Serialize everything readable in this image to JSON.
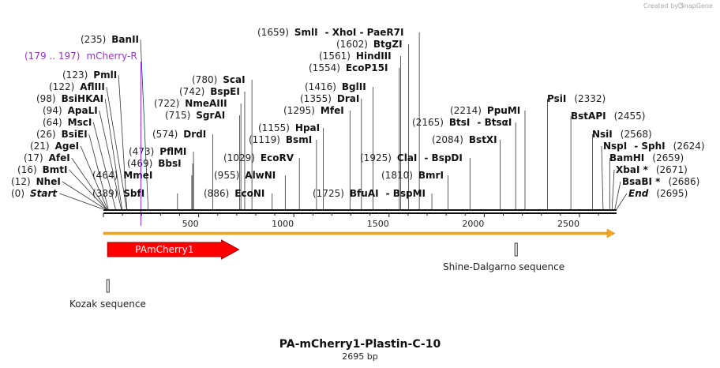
{
  "credit": "Created by SnapGene",
  "map": {
    "title": "PA-mCherry1-Plastin-C-10",
    "length_label": "2695 bp",
    "length_bp": 2695,
    "ticks": [
      "500",
      "1000",
      "1500",
      "2000",
      "2500"
    ],
    "tick_values": [
      500,
      1000,
      1500,
      2000,
      2500
    ]
  },
  "primer": {
    "range": "(179 .. 197)",
    "name": "mCherry-R",
    "bp": 197
  },
  "features": [
    {
      "name": "PAmCherry1",
      "type": "cds-arrow",
      "start": 1,
      "end": 711,
      "color": "#ff0000"
    },
    {
      "name": "Kozak sequence",
      "type": "small-box",
      "start": 1,
      "end": 10
    },
    {
      "name": "Shine-Dalgarno sequence",
      "type": "small-box",
      "start": 2161,
      "end": 2167
    }
  ],
  "sites": [
    {
      "pos": "(0)",
      "name": "Start",
      "bp": 0,
      "special": true
    },
    {
      "pos": "(12)",
      "name": "NheI",
      "bp": 12
    },
    {
      "pos": "(16)",
      "name": "BmtI",
      "bp": 16
    },
    {
      "pos": "(17)",
      "name": "AfeI",
      "bp": 17
    },
    {
      "pos": "(21)",
      "name": "AgeI",
      "bp": 21
    },
    {
      "pos": "(26)",
      "name": "BsiEI",
      "bp": 26
    },
    {
      "pos": "(64)",
      "name": "MscI",
      "bp": 64
    },
    {
      "pos": "(94)",
      "name": "ApaLI",
      "bp": 94
    },
    {
      "pos": "(98)",
      "name": "BsiHKAI",
      "bp": 98
    },
    {
      "pos": "(122)",
      "name": "AflIII",
      "bp": 122
    },
    {
      "pos": "(123)",
      "name": "PmlI",
      "bp": 123
    },
    {
      "pos": "(235)",
      "name": "BanII",
      "bp": 235
    },
    {
      "pos": "(389)",
      "name": "SbfI",
      "bp": 389
    },
    {
      "pos": "(464)",
      "name": "MmeI",
      "bp": 464
    },
    {
      "pos": "(469)",
      "name": "BbsI",
      "bp": 469
    },
    {
      "pos": "(473)",
      "name": "PflMI",
      "bp": 473
    },
    {
      "pos": "(574)",
      "name": "DrdI",
      "bp": 574
    },
    {
      "pos": "(715)",
      "name": "SgrAI",
      "bp": 715
    },
    {
      "pos": "(722)",
      "name": "NmeAIII",
      "bp": 722
    },
    {
      "pos": "(742)",
      "name": "BspEI",
      "bp": 742
    },
    {
      "pos": "(780)",
      "name": "ScaI",
      "bp": 780
    },
    {
      "pos": "(886)",
      "name": "EcoNI",
      "bp": 886
    },
    {
      "pos": "(955)",
      "name": "AlwNI",
      "bp": 955
    },
    {
      "pos": "(1029)",
      "name": "EcoRV",
      "bp": 1029
    },
    {
      "pos": "(1119)",
      "name": "BsmI",
      "bp": 1119
    },
    {
      "pos": "(1155)",
      "name": "HpaI",
      "bp": 1155
    },
    {
      "pos": "(1295)",
      "name": "MfeI",
      "bp": 1295
    },
    {
      "pos": "(1355)",
      "name": "DraI",
      "bp": 1355
    },
    {
      "pos": "(1416)",
      "name": "BglII",
      "bp": 1416
    },
    {
      "pos": "(1554)",
      "name": "EcoP15I",
      "bp": 1554
    },
    {
      "pos": "(1561)",
      "name": "HindIII",
      "bp": 1561
    },
    {
      "pos": "(1602)",
      "name": "BtgZI",
      "bp": 1602
    },
    {
      "pos": "(1659)",
      "name": "SmlI",
      "extra": "-  XhoI   -  PaeR7I",
      "bp": 1659
    },
    {
      "pos": "(1725)",
      "name": "BfuAI",
      "extra": "-  BspMI",
      "bp": 1725
    },
    {
      "pos": "(1810)",
      "name": "BmrI",
      "bp": 1810
    },
    {
      "pos": "(1925)",
      "name": "ClaI",
      "extra": "-  BspDI",
      "bp": 1925
    },
    {
      "pos": "(2084)",
      "name": "BstXI",
      "bp": 2084
    },
    {
      "pos": "(2165)",
      "name": "BtsI",
      "extra": "-  BtsαI",
      "bp": 2165
    },
    {
      "pos": "(2214)",
      "name": "PpuMI",
      "bp": 2214
    },
    {
      "pos": "(2332)",
      "name": "PsiI",
      "bp": 2332
    },
    {
      "pos": "(2455)",
      "name": "BstAPI",
      "bp": 2455
    },
    {
      "pos": "(2568)",
      "name": "NsiI",
      "bp": 2568
    },
    {
      "pos": "(2624)",
      "name": "NspI",
      "extra": "-  SphI",
      "bp": 2624
    },
    {
      "pos": "(2659)",
      "name": "BamHI",
      "bp": 2659
    },
    {
      "pos": "(2671)",
      "name": "XbaI *",
      "bp": 2671
    },
    {
      "pos": "(2686)",
      "name": "BsaBI *",
      "bp": 2686
    },
    {
      "pos": "(2695)",
      "name": "End",
      "bp": 2695,
      "special": true
    }
  ]
}
